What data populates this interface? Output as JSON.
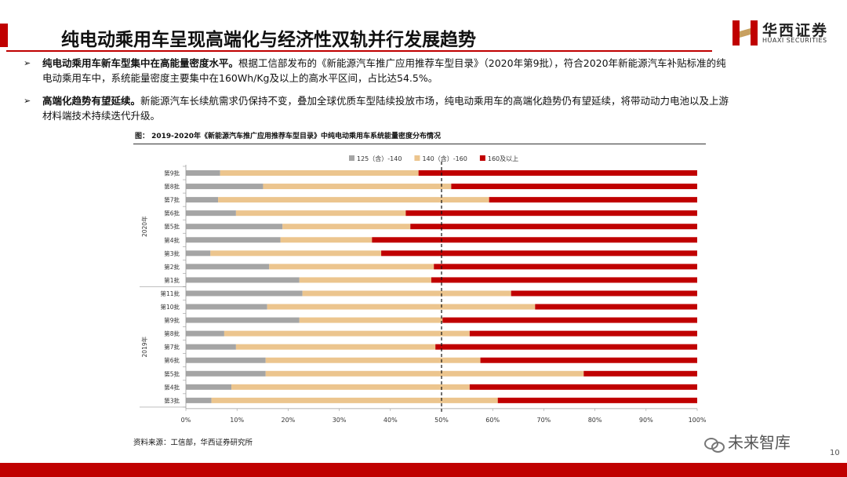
{
  "header": {
    "title": "纯电动乘用车呈现高端化与经济性双轨并行发展趋势",
    "logo_cn": "华西证券",
    "logo_en": "HUAXI SECURITIES",
    "colors": {
      "accent": "#c00000"
    }
  },
  "bullets": [
    {
      "bold": "纯电动乘用车新车型集中在高能量密度水平。",
      "text": "根据工信部发布的《新能源汽车推广应用推荐车型目录》（2020年第9批），符合2020年新能源汽车补贴标准的纯电动乘用车中，系统能量密度主要集中在160Wh/Kg及以上的高水平区间，占比达54.5%。"
    },
    {
      "bold": "高端化趋势有望延续。",
      "text": "新能源汽车长续航需求仍保持不变，叠加全球优质车型陆续投放市场，纯电动乘用车的高端化趋势仍有望延续，将带动动力电池以及上游材料端技术持续迭代升级。"
    }
  ],
  "figure": {
    "caption": "图：  2019-2020年《新能源汽车推广应用推荐车型目录》中纯电动乘用车系统能量密度分布情况",
    "source": "资料来源：工信部，华西证券研究所"
  },
  "chart_data": {
    "type": "bar",
    "orientation": "horizontal",
    "stacked": true,
    "percent": true,
    "groups": [
      {
        "label": "2020年",
        "categories": [
          "第9批",
          "第8批",
          "第7批",
          "第6批",
          "第5批",
          "第4批",
          "第3批",
          "第2批",
          "第1批"
        ]
      },
      {
        "label": "2019年",
        "categories": [
          "第11批",
          "第10批",
          "第9批",
          "第8批",
          "第7批",
          "第6批",
          "第5批",
          "第4批",
          "第3批"
        ]
      }
    ],
    "categories": [
      "2020年 第9批",
      "2020年 第8批",
      "2020年 第7批",
      "2020年 第6批",
      "2020年 第5批",
      "2020年 第4批",
      "2020年 第3批",
      "2020年 第2批",
      "2020年 第1批",
      "2019年 第11批",
      "2019年 第10批",
      "2019年 第9批",
      "2019年 第8批",
      "2019年 第7批",
      "2019年 第6批",
      "2019年 第5批",
      "2019年 第4批",
      "2019年 第3批"
    ],
    "series": [
      {
        "name": "125（含）-140",
        "color": "#a5a5a5",
        "values": [
          6.7,
          15.1,
          6.3,
          9.8,
          18.9,
          18.5,
          4.8,
          16.3,
          22.2,
          22.8,
          15.9,
          22.2,
          7.5,
          9.8,
          15.6,
          15.6,
          8.9,
          5.0
        ]
      },
      {
        "name": "140（含）-160",
        "color": "#ecc58e",
        "values": [
          38.8,
          36.8,
          53.0,
          33.2,
          25.0,
          17.9,
          33.4,
          32.2,
          25.8,
          40.8,
          52.4,
          28.0,
          48.0,
          39.0,
          42.0,
          62.2,
          46.6,
          56.0
        ]
      },
      {
        "name": "160及以上",
        "color": "#c00000",
        "values": [
          54.5,
          48.1,
          40.7,
          57.0,
          56.1,
          63.6,
          61.8,
          51.5,
          52.0,
          36.4,
          31.7,
          49.8,
          44.5,
          51.2,
          42.4,
          22.2,
          44.5,
          39.0
        ]
      }
    ],
    "xlim": [
      0,
      100
    ],
    "xticks": [
      "0%",
      "10%",
      "20%",
      "30%",
      "40%",
      "50%",
      "60%",
      "70%",
      "80%",
      "90%",
      "100%"
    ],
    "reference_line": 50,
    "legend_position": "top",
    "grid": false
  },
  "watermark": "未来智库",
  "page_number": "10"
}
